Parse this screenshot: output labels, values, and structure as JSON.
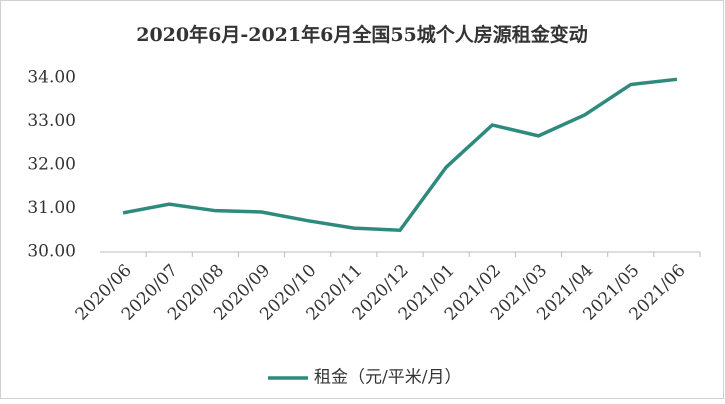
{
  "chart_data": {
    "type": "line",
    "title": "2020年6月-2021年6月全国55城个人房源租金变动",
    "categories": [
      "2020/06",
      "2020/07",
      "2020/08",
      "2020/09",
      "2020/10",
      "2020/11",
      "2020/12",
      "2021/01",
      "2021/02",
      "2021/03",
      "2021/04",
      "2021/05",
      "2021/06"
    ],
    "series": [
      {
        "name": "租金（元/平米/月）",
        "color": "#2f8a7e",
        "values": [
          30.9,
          31.1,
          30.95,
          30.92,
          30.72,
          30.55,
          30.5,
          31.95,
          32.92,
          32.67,
          33.15,
          33.85,
          33.97
        ]
      }
    ],
    "ylim": [
      30,
      34
    ],
    "yticks": [
      {
        "value": 30,
        "label": "30.00"
      },
      {
        "value": 31,
        "label": "31.00"
      },
      {
        "value": 32,
        "label": "32.00"
      },
      {
        "value": 33,
        "label": "33.00"
      },
      {
        "value": 34,
        "label": "34.00"
      }
    ],
    "grid": false,
    "legend": "bottom"
  }
}
